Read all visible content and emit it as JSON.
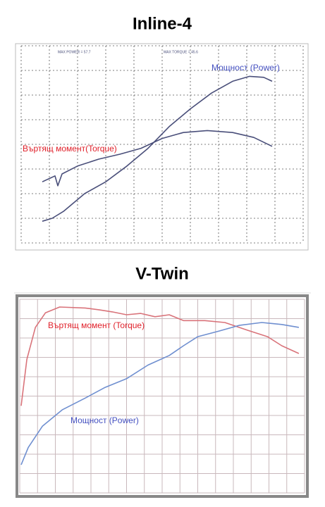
{
  "chart_data": [
    {
      "type": "line",
      "title": "Inline-4",
      "annotations": [
        "MAX POWER = 57.7",
        "MAX TORQUE = 45.6",
        "Въртящ момент(Torque)",
        "Мощност (Power)"
      ],
      "xlim": [
        0,
        100
      ],
      "ylim": [
        0,
        100
      ],
      "xticks": [
        0,
        10,
        20,
        30,
        40,
        50,
        60,
        70,
        80,
        90,
        100
      ],
      "yticks": [
        0,
        12.5,
        25,
        37.5,
        50,
        62.5,
        75,
        87.5,
        100
      ],
      "grid": true,
      "series": [
        {
          "color": "#4a4f7a",
          "x": [
            7.5,
            10.5,
            12,
            13,
            14.5,
            20,
            27.5,
            35,
            42.5,
            50,
            57.5,
            66,
            75,
            82.5,
            89
          ],
          "values": [
            31,
            33,
            34,
            29,
            35,
            39,
            42.5,
            45,
            48,
            53,
            56,
            57,
            56,
            53.5,
            49
          ]
        },
        {
          "color": "#4a4f7a",
          "x": [
            7.5,
            11,
            15,
            22.5,
            30,
            37.5,
            45,
            52.5,
            60,
            67.5,
            75,
            81,
            86,
            89
          ],
          "values": [
            11,
            12.5,
            16,
            25,
            31,
            39,
            48,
            59,
            68,
            76,
            82,
            84.5,
            84,
            82
          ]
        }
      ]
    },
    {
      "type": "line",
      "title": "V-Twin",
      "annotations": [
        "Въртящ момент (Torque)",
        "Мощност (Power)"
      ],
      "xlim": [
        0,
        100
      ],
      "ylim": [
        0,
        100
      ],
      "xticks": [
        0,
        6.25,
        12.5,
        18.75,
        25,
        31.25,
        37.5,
        43.75,
        50,
        56.25,
        62.5,
        68.75,
        75,
        81.25,
        87.5,
        93.75,
        100
      ],
      "yticks": [
        0,
        10,
        20,
        30,
        40,
        50,
        60,
        70,
        80,
        90,
        100
      ],
      "grid": true,
      "series": [
        {
          "color": "#d9737a",
          "x": [
            0.5,
            2.5,
            5.5,
            9,
            14,
            23,
            28,
            32.5,
            37.5,
            42.5,
            47.5,
            52.5,
            57.5,
            65,
            72,
            80,
            87,
            92,
            98
          ],
          "values": [
            45,
            69,
            85.5,
            93,
            96,
            95.5,
            94.5,
            93.5,
            92,
            92.7,
            91,
            92,
            89,
            89,
            88,
            84,
            80.7,
            76,
            72
          ]
        },
        {
          "color": "#6f8fd0",
          "x": [
            0.5,
            3,
            8,
            15,
            23,
            30,
            37.5,
            45,
            52.5,
            57.5,
            62.5,
            70,
            77,
            85,
            92,
            98
          ],
          "values": [
            14.5,
            23.5,
            34.5,
            43,
            49,
            54.5,
            59,
            66,
            71,
            76,
            80.7,
            83.6,
            86.5,
            88,
            87,
            85.5
          ]
        }
      ]
    }
  ]
}
